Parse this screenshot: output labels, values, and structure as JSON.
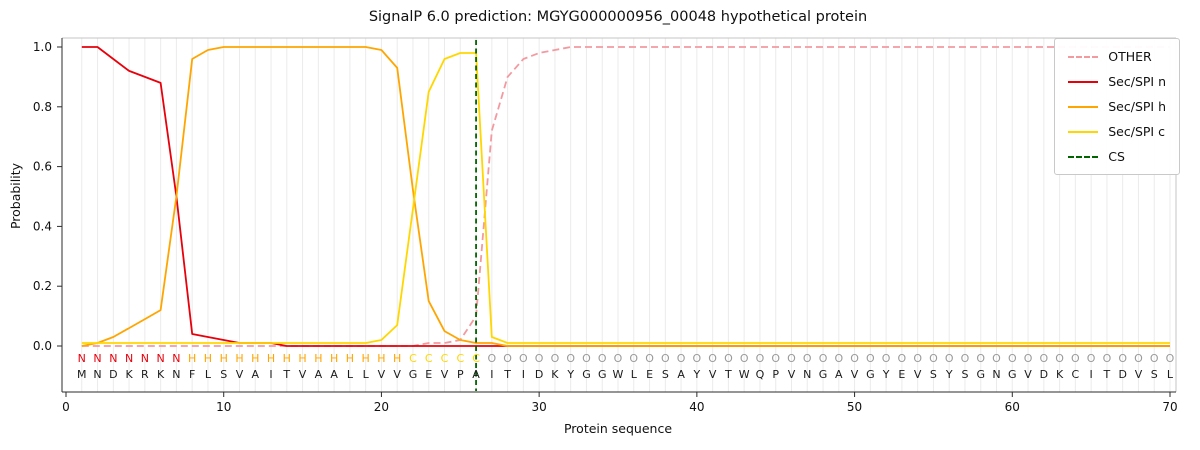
{
  "title": "SignalP 6.0 prediction: MGYG000000956_00048 hypothetical protein",
  "chart_data": {
    "type": "line",
    "title": "SignalP 6.0 prediction: MGYG000000956_00048 hypothetical protein",
    "xlabel": "Protein sequence",
    "ylabel": "Probability",
    "xlim": [
      0,
      71
    ],
    "ylim": [
      0.0,
      1.05
    ],
    "x_ticks": [
      0,
      10,
      20,
      30,
      40,
      50,
      60,
      70
    ],
    "y_ticks": [
      "0.0",
      "0.2",
      "0.4",
      "0.6",
      "0.8",
      "1.0"
    ],
    "grid": "vertical-line-per-residue",
    "grid_color": "#ebebeb",
    "legend_position": "upper right",
    "x_start": 1,
    "sequence": "MNDKRKNFLSVAITVAALLVVGEVPAITIDKYGGWLESAYVTWQPVNGAVGYEVSYSGNGVDKCITDVSL",
    "region_labels": "NNNNNNNHHHHHHHHHHHHHHCCCCCOOOOOOOOOOOOOOOOOOOOOOOOOOOOOOOOOOOOOOOOOOOO",
    "region_colors": {
      "N": "#e8000b",
      "H": "#ffa500",
      "C": "#ffd700",
      "O": "#9a9a9a"
    },
    "sequence_color": "#1a1a1a",
    "cleavage_site_position": 26,
    "series": [
      {
        "name": "OTHER",
        "color": "#f39aa0",
        "dashed": true,
        "values": [
          0,
          0,
          0,
          0,
          0,
          0,
          0,
          0,
          0,
          0,
          0,
          0,
          0,
          0,
          0,
          0,
          0,
          0,
          0,
          0,
          0,
          0,
          0.01,
          0.01,
          0.02,
          0.1,
          0.72,
          0.9,
          0.96,
          0.98,
          0.99,
          1,
          1,
          1,
          1,
          1,
          1,
          1,
          1,
          1,
          1,
          1,
          1,
          1,
          1,
          1,
          1,
          1,
          1,
          1,
          1,
          1,
          1,
          1,
          1,
          1,
          1,
          1,
          1,
          1,
          1,
          1,
          1,
          1,
          1,
          1,
          1,
          1,
          1,
          1
        ]
      },
      {
        "name": "Sec/SPI n",
        "color": "#e8000b",
        "dashed": false,
        "values": [
          1,
          1,
          0.96,
          0.92,
          0.9,
          0.88,
          0.5,
          0.04,
          0.03,
          0.02,
          0.01,
          0.01,
          0.01,
          0,
          0,
          0,
          0,
          0,
          0,
          0,
          0,
          0,
          0,
          0,
          0,
          0,
          0,
          0,
          0,
          0,
          0,
          0,
          0,
          0,
          0,
          0,
          0,
          0,
          0,
          0,
          0,
          0,
          0,
          0,
          0,
          0,
          0,
          0,
          0,
          0,
          0,
          0,
          0,
          0,
          0,
          0,
          0,
          0,
          0,
          0,
          0,
          0,
          0,
          0,
          0,
          0,
          0,
          0,
          0,
          0
        ]
      },
      {
        "name": "Sec/SPI h",
        "color": "#ffa500",
        "dashed": false,
        "values": [
          0,
          0.01,
          0.03,
          0.06,
          0.09,
          0.12,
          0.5,
          0.96,
          0.99,
          1,
          1,
          1,
          1,
          1,
          1,
          1,
          1,
          1,
          1,
          0.99,
          0.93,
          0.52,
          0.15,
          0.05,
          0.02,
          0.01,
          0.01,
          0,
          0,
          0,
          0,
          0,
          0,
          0,
          0,
          0,
          0,
          0,
          0,
          0,
          0,
          0,
          0,
          0,
          0,
          0,
          0,
          0,
          0,
          0,
          0,
          0,
          0,
          0,
          0,
          0,
          0,
          0,
          0,
          0,
          0,
          0,
          0,
          0,
          0,
          0,
          0,
          0,
          0,
          0
        ]
      },
      {
        "name": "Sec/SPI c",
        "color": "#ffd700",
        "dashed": false,
        "values": [
          0.01,
          0.01,
          0.01,
          0.01,
          0.01,
          0.01,
          0.01,
          0.01,
          0.01,
          0.01,
          0.01,
          0.01,
          0.01,
          0.01,
          0.01,
          0.01,
          0.01,
          0.01,
          0.01,
          0.02,
          0.07,
          0.46,
          0.85,
          0.96,
          0.98,
          0.98,
          0.03,
          0.01,
          0.01,
          0.01,
          0.01,
          0.01,
          0.01,
          0.01,
          0.01,
          0.01,
          0.01,
          0.01,
          0.01,
          0.01,
          0.01,
          0.01,
          0.01,
          0.01,
          0.01,
          0.01,
          0.01,
          0.01,
          0.01,
          0.01,
          0.01,
          0.01,
          0.01,
          0.01,
          0.01,
          0.01,
          0.01,
          0.01,
          0.01,
          0.01,
          0.01,
          0.01,
          0.01,
          0.01,
          0.01,
          0.01,
          0.01,
          0.01,
          0.01,
          0.01
        ]
      },
      {
        "name": "CS",
        "color": "#006400",
        "dashed": true,
        "type": "vline",
        "x": 26
      }
    ]
  }
}
